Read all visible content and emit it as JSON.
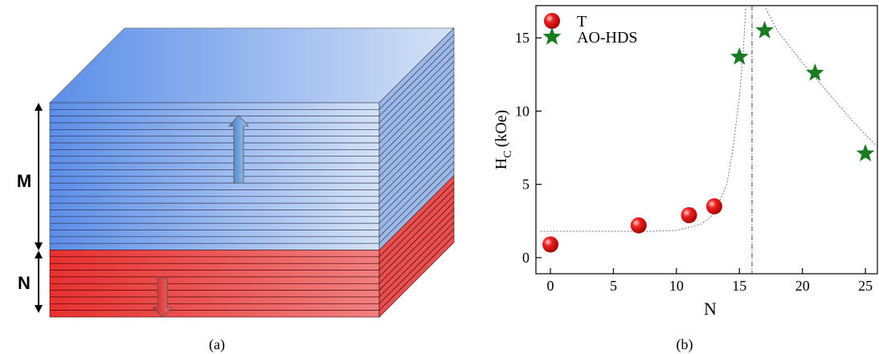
{
  "panel_a": {
    "labels": [
      "M",
      "N"
    ],
    "caption": "(a)"
  },
  "chart_data": {
    "type": "scatter",
    "caption": "(b)",
    "xlabel": "N",
    "ylabel": {
      "symbol": "H",
      "subscript": "C",
      "unit": "(kOe)"
    },
    "xlim": [
      -1.15,
      25.95
    ],
    "ylim": [
      -1.1,
      17.2
    ],
    "xticks": [
      0,
      5,
      10,
      15,
      20,
      25
    ],
    "yticks": [
      0,
      5,
      10,
      15
    ],
    "legend": "upper left",
    "series": [
      {
        "name": "T",
        "color": "#e0181c",
        "marker": "sphere",
        "x": [
          0,
          7,
          11,
          13
        ],
        "values": [
          0.9,
          2.2,
          2.9,
          3.5
        ]
      },
      {
        "name": "AO-HDS",
        "color": "#1a7a22",
        "marker": "star",
        "x": [
          15,
          17,
          21,
          25
        ],
        "values": [
          13.7,
          15.5,
          12.6,
          7.1
        ]
      }
    ],
    "fit_curves": [
      {
        "color": "#777",
        "x": [
          -0.8,
          4,
          8,
          10,
          12,
          13,
          14,
          14.5,
          15,
          15.3,
          15.5
        ],
        "values": [
          1.8,
          1.8,
          1.8,
          1.85,
          2.3,
          3.0,
          5.0,
          7.5,
          11,
          14,
          17
        ]
      },
      {
        "color": "#777",
        "x": [
          17.1,
          18,
          20,
          22,
          24,
          25.9
        ],
        "values": [
          17,
          15.5,
          13.3,
          11.3,
          9.3,
          7.6
        ]
      }
    ],
    "vline": 16
  }
}
